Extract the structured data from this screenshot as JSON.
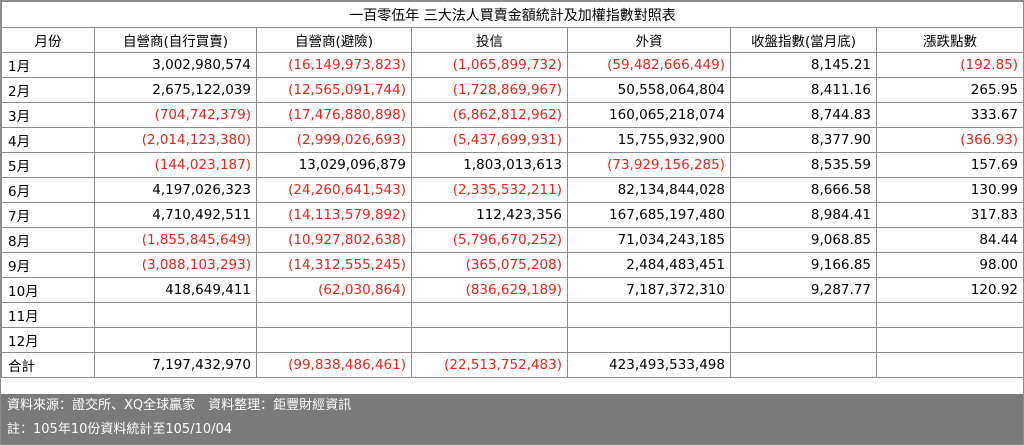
{
  "title": "一百零伍年 三大法人買賣金額統計及加權指數對照表",
  "headers": [
    "月份",
    "自營商(自行買賣)",
    "自營商(避險)",
    "投信",
    "外資",
    "收盤指數(當月底)",
    "漲跌點數"
  ],
  "rows": [
    {
      "month": "1月",
      "cells": [
        "3,002,980,574",
        "(16,149,973,823)",
        "(1,065,899,732)",
        "(59,482,666,449)",
        "8,145.21",
        "(192.85)"
      ]
    },
    {
      "month": "2月",
      "cells": [
        "2,675,122,039",
        "(12,565,091,744)",
        "(1,728,869,967)",
        "50,558,064,804",
        "8,411.16",
        "265.95"
      ]
    },
    {
      "month": "3月",
      "cells": [
        "(704,742,379)",
        "(17,476,880,898)",
        "(6,862,812,962)",
        "160,065,218,074",
        "8,744.83",
        "333.67"
      ]
    },
    {
      "month": "4月",
      "cells": [
        "(2,014,123,380)",
        "(2,999,026,693)",
        "(5,437,699,931)",
        "15,755,932,900",
        "8,377.90",
        "(366.93)"
      ]
    },
    {
      "month": "5月",
      "cells": [
        "(144,023,187)",
        "13,029,096,879",
        "1,803,013,613",
        "(73,929,156,285)",
        "8,535.59",
        "157.69"
      ]
    },
    {
      "month": "6月",
      "cells": [
        "4,197,026,323",
        "(24,260,641,543)",
        "(2,335,532,211)",
        "82,134,844,028",
        "8,666.58",
        "130.99"
      ]
    },
    {
      "month": "7月",
      "cells": [
        "4,710,492,511",
        "(14,113,579,892)",
        "112,423,356",
        "167,685,197,480",
        "8,984.41",
        "317.83"
      ]
    },
    {
      "month": "8月",
      "cells": [
        "(1,855,845,649)",
        "(10,927,802,638)",
        "(5,796,670,252)",
        "71,034,243,185",
        "9,068.85",
        "84.44"
      ]
    },
    {
      "month": "9月",
      "cells": [
        "(3,088,103,293)",
        "(14,312,555,245)",
        "(365,075,208)",
        "2,484,483,451",
        "9,166.85",
        "98.00"
      ]
    },
    {
      "month": "10月",
      "cells": [
        "418,649,411",
        "(62,030,864)",
        "(836,629,189)",
        "7,187,372,310",
        "9,287.77",
        "120.92"
      ]
    },
    {
      "month": "11月",
      "cells": [
        "",
        "",
        "",
        "",
        "",
        ""
      ]
    },
    {
      "month": "12月",
      "cells": [
        "",
        "",
        "",
        "",
        "",
        ""
      ]
    },
    {
      "month": "合計",
      "cells": [
        "7,197,432,970",
        "(99,838,486,461)",
        "(22,513,752,483)",
        "423,493,533,498",
        "",
        ""
      ]
    }
  ],
  "footer": {
    "source": "資料來源：證交所、XQ全球贏家　資料整理：鉅豐財經資訊",
    "note": "註：105年10份資料統計至105/10/04"
  },
  "colors": {
    "negative": "#e8241c",
    "positive": "#000000",
    "footer_bg": "#7a7a7a",
    "border": "#8c8c8c"
  }
}
